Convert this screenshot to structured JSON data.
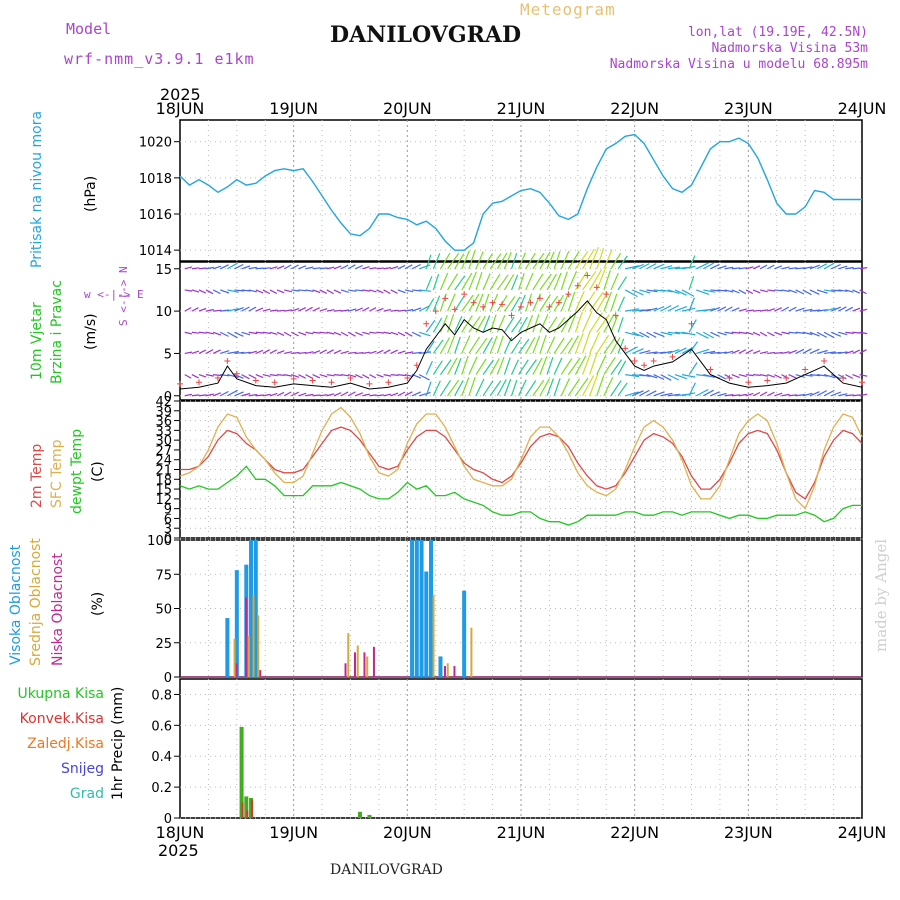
{
  "header": {
    "model_label": "Model",
    "model_name": "wrf-nmm_v3.9.1 e1km",
    "location": "DANILOVGRAD",
    "meteogram_label": "Meteogram",
    "lonlat": "lon,lat (19.19E, 42.5N)",
    "elevation": "Nadmorska Visina 53m",
    "model_elevation": "Nadmorska Visina u modelu 68.895m"
  },
  "footer": {
    "location": "DANILOVGRAD",
    "watermark": "made by Angel"
  },
  "time_axis": {
    "year": "2025",
    "days": [
      "18JUN",
      "19JUN",
      "20JUN",
      "21JUN",
      "22JUN",
      "23JUN",
      "24JUN"
    ]
  },
  "panels": {
    "pressure": {
      "title": "Pritisak na nivou mora",
      "unit": "(hPa)",
      "ticks": [
        "1014",
        "1016",
        "1018",
        "1020"
      ]
    },
    "wind": {
      "title_line1": "10m Vjetar",
      "title_line2": "Brzina i Pravac",
      "unit": "(m/s)",
      "ticks": [
        "0",
        "5",
        "10",
        "15"
      ],
      "compass": "w <-|-> E",
      "compass_vert": "S <-|-> N"
    },
    "temp": {
      "series_names": [
        "2m Temp",
        "SFC Temp",
        "dewpt Temp"
      ],
      "unit": "(C)",
      "ticks": [
        "0",
        "3",
        "6",
        "9",
        "12",
        "15",
        "18",
        "21",
        "24",
        "27",
        "30",
        "33",
        "36",
        "39",
        "42"
      ]
    },
    "cloud": {
      "series_names": [
        "Visoka Oblacnost",
        "Srednja Oblacnost",
        "Niska Oblacnost"
      ],
      "unit": "(%)",
      "ticks": [
        "0",
        "25",
        "50",
        "75",
        "100"
      ]
    },
    "precip": {
      "legend": [
        "Ukupna Kisa",
        "Konvek.Kisa",
        "Zaledj.Kisa",
        "Snijeg",
        "Grad"
      ],
      "unit": "1hr Precip (mm)",
      "ticks": [
        "0",
        "0.2",
        "0.4",
        "0.6",
        "0.8"
      ]
    }
  },
  "colors": {
    "pressure": "#22a6e0",
    "temp2m": "#e04848",
    "sfc": "#e0b050",
    "dew": "#22c822",
    "high_cloud": "#1e9ae6",
    "mid_cloud": "#d8a838",
    "low_cloud": "#c02890",
    "total_rain": "#44aa22",
    "conv_rain": "#dd3333",
    "freezing": "#ee7722",
    "snow": "#4444dd",
    "hail": "#33bbaa",
    "title_purple": "#aa44cc",
    "meteogram_orange": "#e8c070"
  },
  "chart_data": [
    {
      "type": "line",
      "name": "pressure",
      "ylabel": "(hPa)",
      "ylim": [
        1013.4,
        1021.2
      ],
      "xlim": [
        0,
        144
      ],
      "x": [
        0,
        2,
        4,
        6,
        8,
        10,
        12,
        14,
        16,
        18,
        20,
        22,
        24,
        26,
        28,
        30,
        32,
        34,
        36,
        38,
        40,
        42,
        44,
        46,
        48,
        50,
        52,
        54,
        56,
        58,
        60,
        62,
        64,
        66,
        68,
        70,
        72,
        74,
        76,
        78,
        80,
        82,
        84,
        86,
        88,
        90,
        92,
        94,
        96,
        98,
        100,
        102,
        104,
        106,
        108,
        110,
        112,
        114,
        116,
        118,
        120,
        122,
        124,
        126,
        128,
        130,
        132,
        134,
        136,
        138,
        140,
        142,
        144
      ],
      "values": [
        1018.1,
        1017.6,
        1017.9,
        1017.6,
        1017.2,
        1017.5,
        1017.9,
        1017.6,
        1017.7,
        1018.1,
        1018.4,
        1018.5,
        1018.4,
        1018.5,
        1017.8,
        1017.0,
        1016.2,
        1015.5,
        1014.9,
        1014.8,
        1015.2,
        1016.0,
        1016.0,
        1015.8,
        1015.7,
        1015.4,
        1015.6,
        1015.2,
        1014.5,
        1014.0,
        1014.0,
        1014.4,
        1016.0,
        1016.6,
        1016.7,
        1017.0,
        1017.3,
        1017.4,
        1017.2,
        1016.6,
        1015.9,
        1015.7,
        1016.0,
        1017.4,
        1018.6,
        1019.6,
        1019.9,
        1020.3,
        1020.4,
        1019.9,
        1019.0,
        1018.1,
        1017.4,
        1017.2,
        1017.6,
        1018.6,
        1019.6,
        1020.0,
        1020.0,
        1020.2,
        1019.9,
        1019.1,
        1017.9,
        1016.6,
        1016.0,
        1016.0,
        1016.4,
        1017.3,
        1017.2,
        1016.8,
        1016.8,
        1016.8,
        1016.8
      ]
    },
    {
      "type": "line",
      "name": "wind",
      "ylabel": "(m/s)",
      "ylim": [
        -0.5,
        15.8
      ],
      "xlim": [
        0,
        144
      ],
      "x": [
        0,
        4,
        8,
        10,
        12,
        16,
        20,
        24,
        28,
        32,
        36,
        40,
        44,
        48,
        50,
        52,
        54,
        56,
        58,
        60,
        62,
        64,
        66,
        68,
        70,
        72,
        74,
        76,
        78,
        80,
        82,
        84,
        86,
        88,
        90,
        92,
        94,
        96,
        98,
        100,
        104,
        108,
        112,
        116,
        120,
        124,
        128,
        132,
        136,
        140,
        144
      ],
      "values": [
        0.8,
        1.0,
        1.5,
        3.5,
        2.0,
        1.2,
        1.0,
        1.4,
        1.2,
        1.0,
        1.5,
        0.8,
        1.0,
        1.5,
        3.0,
        5.5,
        7.0,
        8.5,
        7.2,
        9.0,
        8.0,
        7.5,
        8.0,
        7.8,
        6.5,
        7.5,
        8.0,
        8.5,
        7.5,
        8.0,
        9.0,
        10.0,
        11.2,
        9.8,
        9.0,
        6.5,
        5.0,
        3.5,
        3.0,
        3.5,
        4.0,
        5.5,
        2.5,
        1.5,
        1.0,
        1.2,
        1.5,
        2.5,
        3.5,
        1.5,
        1.0
      ]
    },
    {
      "type": "line",
      "name": "temperature",
      "ylabel": "(C)",
      "ylim": [
        0,
        42
      ],
      "xlim": [
        0,
        144
      ],
      "x": [
        0,
        2,
        4,
        6,
        8,
        10,
        12,
        14,
        16,
        18,
        20,
        22,
        24,
        26,
        28,
        30,
        32,
        34,
        36,
        38,
        40,
        42,
        44,
        46,
        48,
        50,
        52,
        54,
        56,
        58,
        60,
        62,
        64,
        66,
        68,
        70,
        72,
        74,
        76,
        78,
        80,
        82,
        84,
        86,
        88,
        90,
        92,
        94,
        96,
        98,
        100,
        102,
        104,
        106,
        108,
        110,
        112,
        114,
        116,
        118,
        120,
        122,
        124,
        126,
        128,
        130,
        132,
        134,
        136,
        138,
        140,
        142,
        144
      ],
      "series": [
        {
          "name": "2m Temp",
          "values": [
            21,
            21,
            22,
            25,
            30,
            33,
            32,
            29,
            27,
            24,
            21,
            20,
            20,
            21,
            25,
            29,
            33,
            34,
            33,
            30,
            26,
            22,
            21,
            22,
            27,
            31,
            33,
            33,
            31,
            27,
            23,
            21,
            20,
            18,
            17,
            19,
            23,
            28,
            31,
            32,
            31,
            28,
            23,
            19,
            16,
            15,
            16,
            20,
            25,
            30,
            32,
            31,
            29,
            25,
            19,
            15,
            15,
            18,
            23,
            29,
            32,
            33,
            32,
            27,
            20,
            14,
            12,
            17,
            25,
            30,
            33,
            32,
            29
          ]
        },
        {
          "name": "SFC Temp",
          "values": [
            19,
            20,
            22,
            27,
            34,
            38,
            37,
            31,
            27,
            24,
            20,
            17,
            17,
            19,
            26,
            33,
            38,
            40,
            37,
            32,
            25,
            20,
            19,
            21,
            29,
            35,
            38,
            38,
            34,
            28,
            22,
            18,
            17,
            16,
            16,
            18,
            24,
            31,
            34,
            34,
            31,
            26,
            20,
            16,
            14,
            13,
            15,
            21,
            28,
            34,
            36,
            34,
            30,
            24,
            16,
            12,
            12,
            16,
            24,
            32,
            36,
            38,
            36,
            29,
            20,
            12,
            9,
            16,
            27,
            34,
            38,
            37,
            31
          ]
        },
        {
          "name": "dewpt Temp",
          "values": [
            16,
            15,
            16,
            15,
            15,
            17,
            19,
            22,
            18,
            18,
            16,
            13,
            13,
            13,
            16,
            16,
            16,
            17,
            16,
            15,
            13,
            12,
            12,
            14,
            17,
            15,
            16,
            13,
            13,
            14,
            12,
            11,
            10,
            8,
            7,
            7,
            8,
            8,
            6,
            5,
            5,
            4,
            5,
            7,
            7,
            7,
            7,
            8,
            8,
            7,
            7,
            8,
            8,
            7,
            8,
            8,
            8,
            7,
            6,
            7,
            7,
            6,
            6,
            7,
            7,
            7,
            8,
            7,
            5,
            6,
            9,
            10,
            10
          ]
        }
      ]
    },
    {
      "type": "bar",
      "name": "cloud",
      "ylabel": "(%)",
      "ylim": [
        0,
        100
      ],
      "xlim": [
        0,
        144
      ],
      "series": [
        {
          "name": "Visoka Oblacnost",
          "x": [
            10,
            12,
            14,
            15,
            16,
            49,
            50,
            51,
            52,
            53,
            55,
            60
          ],
          "values": [
            43,
            78,
            82,
            100,
            100,
            100,
            100,
            100,
            77,
            100,
            15,
            63
          ]
        },
        {
          "name": "Srednja Oblacnost",
          "x": [
            11,
            14,
            15,
            16,
            35,
            37,
            39,
            53,
            56,
            61
          ],
          "values": [
            28,
            30,
            60,
            45,
            32,
            23,
            15,
            60,
            10,
            36
          ]
        },
        {
          "name": "Niska Oblacnost",
          "x": [
            11,
            13,
            16,
            34,
            36,
            38,
            40,
            55,
            57
          ],
          "values": [
            10,
            58,
            5,
            10,
            18,
            18,
            22,
            8,
            8
          ]
        }
      ]
    },
    {
      "type": "bar",
      "name": "precipitation",
      "ylabel": "1hr Precip (mm)",
      "ylim": [
        0,
        0.9
      ],
      "xlim": [
        0,
        144
      ],
      "series": [
        {
          "name": "Ukupna Kisa",
          "x": [
            13,
            14,
            15,
            38,
            40
          ],
          "values": [
            0.59,
            0.14,
            0.13,
            0.04,
            0.02
          ]
        },
        {
          "name": "Konvek.Kisa",
          "x": [
            13,
            14,
            15
          ],
          "values": [
            0.1,
            0.05,
            0.12
          ]
        }
      ]
    }
  ]
}
